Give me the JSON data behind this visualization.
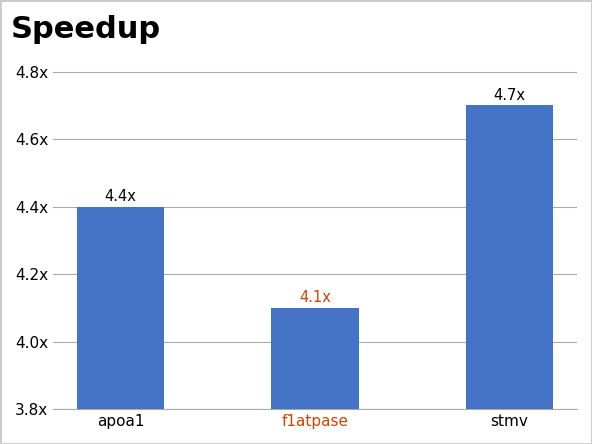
{
  "categories": [
    "apoa1",
    "f1atpase",
    "stmv"
  ],
  "values": [
    4.4,
    4.1,
    4.7
  ],
  "bar_color": "#4472C4",
  "title": "Speedup",
  "title_fontsize": 22,
  "title_fontweight": "bold",
  "ylabel": "",
  "ylim": [
    3.8,
    4.85
  ],
  "yticks": [
    3.8,
    4.0,
    4.2,
    4.4,
    4.6,
    4.8
  ],
  "ytick_labels": [
    "3.8x",
    "4.0x",
    "4.2x",
    "4.4x",
    "4.6x",
    "4.8x"
  ],
  "bar_labels": [
    "4.4x",
    "4.1x",
    "4.7x"
  ],
  "label_colors": [
    "#000000",
    "#cc4400",
    "#000000"
  ],
  "background_color": "#ffffff",
  "plot_bg_color": "#ffffff",
  "grid_color": "#aaaaaa",
  "tick_label_colors": [
    "#000000",
    "#cc4400",
    "#000000"
  ]
}
